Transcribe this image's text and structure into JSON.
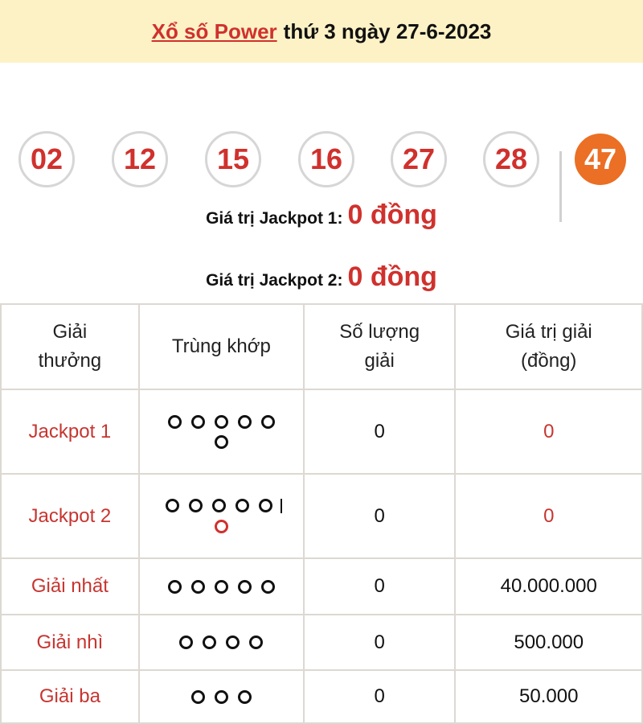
{
  "header": {
    "link": "Xổ số Power",
    "rest": "thứ 3 ngày 27-6-2023"
  },
  "numbers": [
    "02",
    "12",
    "15",
    "16",
    "27",
    "28"
  ],
  "power_number": "47",
  "jackpot1": {
    "label": "Giá trị Jackpot 1:",
    "value": "0 đồng"
  },
  "jackpot2": {
    "label": "Giá trị Jackpot 2:",
    "value": "0 đồng"
  },
  "table": {
    "headers": [
      "Giải thưởng",
      "Trùng khớp",
      "Số lượng giải",
      "Giá trị giải (đồng)"
    ],
    "rows": [
      {
        "name": "Jackpot 1",
        "line1": 5,
        "line2": 1,
        "bar": false,
        "line2_red": false,
        "count": "0",
        "value": "0",
        "value_red": true
      },
      {
        "name": "Jackpot 2",
        "line1": 5,
        "line2": 1,
        "bar": true,
        "line2_red": true,
        "count": "0",
        "value": "0",
        "value_red": true
      },
      {
        "name": "Giải nhất",
        "line1": 5,
        "line2": 0,
        "bar": false,
        "line2_red": false,
        "count": "0",
        "value": "40.000.000",
        "value_red": false
      },
      {
        "name": "Giải nhì",
        "line1": 4,
        "line2": 0,
        "bar": false,
        "line2_red": false,
        "count": "0",
        "value": "500.000",
        "value_red": false
      },
      {
        "name": "Giải ba",
        "line1": 3,
        "line2": 0,
        "bar": false,
        "line2_red": false,
        "count": "0",
        "value": "50.000",
        "value_red": false
      }
    ]
  },
  "colors": {
    "accent": "#d0312d",
    "power": "#eb6f24",
    "header_bg": "#fdf2c6"
  }
}
